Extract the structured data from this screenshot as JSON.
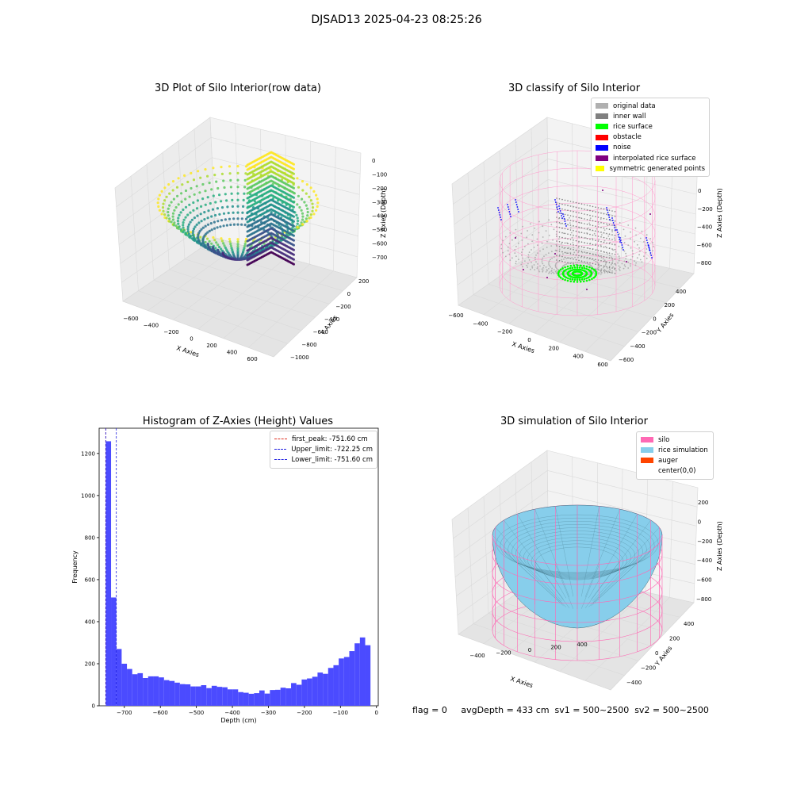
{
  "figure": {
    "suptitle": "DJSAD13 2025-04-23 08:25:26"
  },
  "status_text": "flag = 0     avgDepth = 433 cm  sv1 = 500~2500  sv2 = 500~2500",
  "colors": {
    "histogram_bars": "#4b4bff",
    "first_peak": "#e03020",
    "limits": "#2020e0",
    "silo": "#ff69b4",
    "rice_simulation": "#87ceeb",
    "auger": "#ff4500",
    "original_data": "#b0b0b0",
    "inner_wall": "#808080",
    "rice_surface": "#00ff00",
    "obstacle": "#ff0000",
    "noise": "#0000ff",
    "interpolated_rice_surface": "#800080",
    "symmetric_generated_points": "#ffff00"
  },
  "chart_data": [
    {
      "type": "scatter",
      "title": "3D Plot of Silo Interior(row data)",
      "xlabel": "X Axies",
      "ylabel": "Y Axies",
      "zlabel": "Z Axies (Depth)",
      "x_ticks": [
        "−600",
        "−400",
        "−200",
        "0",
        "200",
        "400",
        "600"
      ],
      "y_ticks": [
        "200",
        "0",
        "−200",
        "−400",
        "−600",
        "−800",
        "−1000"
      ],
      "z_ticks": [
        "0",
        "−100",
        "−200",
        "−300",
        "−400",
        "−500",
        "−600",
        "−700"
      ],
      "colormap": "viridis"
    },
    {
      "type": "scatter",
      "title": "3D classify of Silo Interior",
      "xlabel": "X Axies",
      "ylabel": "Y Axies",
      "zlabel": "Z Axies (Depth)",
      "x_ticks": [
        "−600",
        "−400",
        "−200",
        "0",
        "200",
        "400",
        "600"
      ],
      "y_ticks": [
        "400",
        "200",
        "0",
        "−200",
        "−400",
        "−600"
      ],
      "z_ticks": [
        "0",
        "−200",
        "−400",
        "−600",
        "−800"
      ],
      "legend": [
        {
          "label": "original data",
          "color": "#b0b0b0"
        },
        {
          "label": "inner wall",
          "color": "#808080"
        },
        {
          "label": "rice surface",
          "color": "#00ff00"
        },
        {
          "label": "obstacle",
          "color": "#ff0000"
        },
        {
          "label": "noise",
          "color": "#0000ff"
        },
        {
          "label": "interpolated rice surface",
          "color": "#800080"
        },
        {
          "label": "symmetric generated points",
          "color": "#ffff00"
        }
      ],
      "partial_tick": "00"
    },
    {
      "type": "bar",
      "title": "Histogram of Z-Axies (Height) Values",
      "xlabel": "Depth (cm)",
      "ylabel": "Frequency",
      "xlim": [
        -770,
        5
      ],
      "ylim": [
        0,
        1320
      ],
      "bin_start": -751.6,
      "bin_width": 14.7,
      "values": [
        1258,
        515,
        270,
        200,
        175,
        150,
        155,
        132,
        140,
        140,
        135,
        122,
        118,
        110,
        103,
        102,
        92,
        92,
        98,
        84,
        95,
        90,
        88,
        78,
        78,
        65,
        62,
        57,
        60,
        73,
        58,
        75,
        76,
        86,
        83,
        108,
        100,
        125,
        130,
        138,
        158,
        152,
        180,
        193,
        225,
        232,
        260,
        297,
        325,
        288
      ],
      "x_ticks": [
        -700,
        -600,
        -500,
        -400,
        -300,
        -200,
        -100,
        0
      ],
      "x_tick_labels": [
        "−700",
        "−600",
        "−500",
        "−400",
        "−300",
        "−200",
        "−100",
        "0"
      ],
      "y_ticks": [
        0,
        200,
        400,
        600,
        800,
        1000,
        1200
      ],
      "lines": [
        {
          "label": "first_peak: -751.60 cm",
          "x": -751.6,
          "color": "#e03020"
        },
        {
          "label": "Upper_limit: -722.25 cm",
          "x": -722.25,
          "color": "#2020e0"
        },
        {
          "label": "Lower_limit: -751.60 cm",
          "x": -751.6,
          "color": "#2020e0"
        }
      ]
    },
    {
      "type": "surface",
      "title": "3D simulation of Silo Interior",
      "xlabel": "X Axies",
      "ylabel": "Y Axies",
      "zlabel": "Z Axies (Depth)",
      "x_ticks": [
        "−400",
        "−200",
        "0",
        "200",
        "400"
      ],
      "y_ticks": [
        "400",
        "200",
        "0",
        "−200",
        "−400"
      ],
      "z_ticks": [
        "200",
        "0",
        "−200",
        "−400",
        "−600",
        "−800"
      ],
      "legend": [
        {
          "label": "silo",
          "color": "#ff69b4"
        },
        {
          "label": "rice simulation",
          "color": "#87ceeb"
        },
        {
          "label": "auger",
          "color": "#ff4500"
        },
        {
          "label": "center(0,0)",
          "color": "#ffffff"
        }
      ]
    }
  ]
}
